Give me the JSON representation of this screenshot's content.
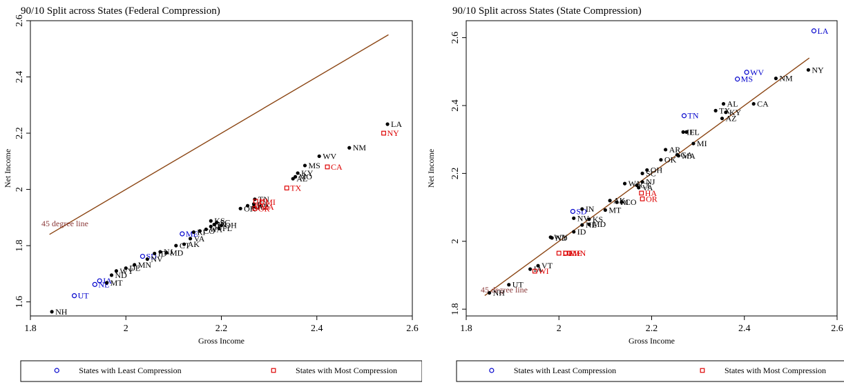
{
  "colors": {
    "least": "#0000cc",
    "most": "#dd0000",
    "normal": "#000000",
    "line45": "#8b4513",
    "line45_label": "#8b3a3a"
  },
  "legend": {
    "least_label": "States with Least Compression",
    "most_label": "States with Most Compression"
  },
  "chart_data": [
    {
      "type": "scatter",
      "title": "90/10 Split across States (Federal Compression)",
      "xlabel": "Gross Income",
      "ylabel": "Net Income",
      "xlim": [
        1.8,
        2.6
      ],
      "ylim": [
        1.55,
        2.6
      ],
      "xticks": [
        "1.8",
        "2",
        "2.2",
        "2.4",
        "2.6"
      ],
      "xtick_values": [
        1.8,
        2.0,
        2.2,
        2.4,
        2.6
      ],
      "yticks": [
        "1.6",
        "1.8",
        "2",
        "2.2",
        "2.4",
        "2.6"
      ],
      "ytick_values": [
        1.6,
        1.8,
        2.0,
        2.2,
        2.4,
        2.6
      ],
      "reference_line": {
        "label": "45 degree line",
        "from": [
          1.84,
          1.84
        ],
        "to": [
          2.55,
          2.55
        ]
      },
      "points": [
        {
          "label": "NH",
          "x": 1.845,
          "y": 1.565,
          "group": "normal"
        },
        {
          "label": "UT",
          "x": 1.892,
          "y": 1.622,
          "group": "least"
        },
        {
          "label": "NE",
          "x": 1.935,
          "y": 1.662,
          "group": "least"
        },
        {
          "label": "IA",
          "x": 1.945,
          "y": 1.675,
          "group": "least"
        },
        {
          "label": "MT",
          "x": 1.96,
          "y": 1.668,
          "group": "normal"
        },
        {
          "label": "ND",
          "x": 1.97,
          "y": 1.695,
          "group": "normal"
        },
        {
          "label": "WY",
          "x": 1.98,
          "y": 1.71,
          "group": "normal"
        },
        {
          "label": "DE",
          "x": 2.0,
          "y": 1.72,
          "group": "normal"
        },
        {
          "label": "MN",
          "x": 2.018,
          "y": 1.732,
          "group": "normal"
        },
        {
          "label": "SD",
          "x": 2.035,
          "y": 1.762,
          "group": "least"
        },
        {
          "label": "NV",
          "x": 2.045,
          "y": 1.752,
          "group": "normal"
        },
        {
          "label": "ID",
          "x": 2.06,
          "y": 1.772,
          "group": "normal"
        },
        {
          "label": "NJ",
          "x": 2.072,
          "y": 1.778,
          "group": "normal"
        },
        {
          "label": "MD",
          "x": 2.085,
          "y": 1.775,
          "group": "normal"
        },
        {
          "label": "CT",
          "x": 2.105,
          "y": 1.8,
          "group": "normal"
        },
        {
          "label": "AK",
          "x": 2.122,
          "y": 1.805,
          "group": "normal"
        },
        {
          "label": "VA",
          "x": 2.135,
          "y": 1.825,
          "group": "normal"
        },
        {
          "label": "ME",
          "x": 2.118,
          "y": 1.842,
          "group": "least"
        },
        {
          "label": "RI",
          "x": 2.142,
          "y": 1.848,
          "group": "normal"
        },
        {
          "label": "CO",
          "x": 2.155,
          "y": 1.852,
          "group": "normal"
        },
        {
          "label": "WA",
          "x": 2.168,
          "y": 1.858,
          "group": "normal"
        },
        {
          "label": "IL",
          "x": 2.178,
          "y": 1.868,
          "group": "normal"
        },
        {
          "label": "KS",
          "x": 2.178,
          "y": 1.888,
          "group": "normal"
        },
        {
          "label": "IN",
          "x": 2.185,
          "y": 1.875,
          "group": "normal"
        },
        {
          "label": "SC",
          "x": 2.19,
          "y": 1.882,
          "group": "normal"
        },
        {
          "label": "OH",
          "x": 2.2,
          "y": 1.872,
          "group": "normal"
        },
        {
          "label": "FL",
          "x": 2.195,
          "y": 1.862,
          "group": "normal"
        },
        {
          "label": "OK",
          "x": 2.24,
          "y": 1.932,
          "group": "normal"
        },
        {
          "label": "AR",
          "x": 2.255,
          "y": 1.942,
          "group": "normal"
        },
        {
          "label": "GA",
          "x": 2.268,
          "y": 1.948,
          "group": "normal"
        },
        {
          "label": "TN",
          "x": 2.27,
          "y": 1.965,
          "group": "normal"
        },
        {
          "label": "AZ",
          "x": 2.268,
          "y": 1.938,
          "group": "normal"
        },
        {
          "label": "HI",
          "x": 2.272,
          "y": 1.958,
          "group": "most"
        },
        {
          "label": "MI",
          "x": 2.285,
          "y": 1.955,
          "group": "most"
        },
        {
          "label": "MA",
          "x": 2.275,
          "y": 1.938,
          "group": "most"
        },
        {
          "label": "OR",
          "x": 2.27,
          "y": 1.932,
          "group": "most"
        },
        {
          "label": "TX",
          "x": 2.337,
          "y": 2.005,
          "group": "most"
        },
        {
          "label": "AL",
          "x": 2.35,
          "y": 2.038,
          "group": "normal"
        },
        {
          "label": "MO",
          "x": 2.355,
          "y": 2.045,
          "group": "normal"
        },
        {
          "label": "KY",
          "x": 2.36,
          "y": 2.058,
          "group": "normal"
        },
        {
          "label": "MS",
          "x": 2.375,
          "y": 2.085,
          "group": "normal"
        },
        {
          "label": "WV",
          "x": 2.405,
          "y": 2.118,
          "group": "normal"
        },
        {
          "label": "CA",
          "x": 2.422,
          "y": 2.08,
          "group": "most"
        },
        {
          "label": "NM",
          "x": 2.468,
          "y": 2.148,
          "group": "normal"
        },
        {
          "label": "NY",
          "x": 2.54,
          "y": 2.2,
          "group": "most"
        },
        {
          "label": "LA",
          "x": 2.548,
          "y": 2.232,
          "group": "normal"
        }
      ]
    },
    {
      "type": "scatter",
      "title": "90/10 Split across States (State Compression)",
      "xlabel": "Gross Income",
      "ylabel": "Net Income",
      "xlim": [
        1.8,
        2.6
      ],
      "ylim": [
        1.78,
        2.65
      ],
      "xticks": [
        "1.8",
        "2",
        "2.2",
        "2.4",
        "2.6"
      ],
      "xtick_values": [
        1.8,
        2.0,
        2.2,
        2.4,
        2.6
      ],
      "yticks": [
        "1.8",
        "2",
        "2.2",
        "2.4",
        "2.6"
      ],
      "ytick_values": [
        1.8,
        2.0,
        2.2,
        2.4,
        2.6
      ],
      "reference_line": {
        "label": "45 degree line",
        "from": [
          1.84,
          1.84
        ],
        "to": [
          2.54,
          2.54
        ]
      },
      "points": [
        {
          "label": "NH",
          "x": 1.85,
          "y": 1.848,
          "group": "normal"
        },
        {
          "label": "UT",
          "x": 1.892,
          "y": 1.872,
          "group": "normal"
        },
        {
          "label": "VT",
          "x": 1.955,
          "y": 1.928,
          "group": "normal"
        },
        {
          "label": "IA",
          "x": 1.938,
          "y": 1.918,
          "group": "normal"
        },
        {
          "label": "WI",
          "x": 1.948,
          "y": 1.912,
          "group": "most"
        },
        {
          "label": "DE",
          "x": 2.0,
          "y": 1.965,
          "group": "most"
        },
        {
          "label": "ME",
          "x": 2.015,
          "y": 1.965,
          "group": "most"
        },
        {
          "label": "MN",
          "x": 2.022,
          "y": 1.965,
          "group": "most"
        },
        {
          "label": "WY",
          "x": 1.982,
          "y": 2.012,
          "group": "normal"
        },
        {
          "label": "ND",
          "x": 1.985,
          "y": 2.01,
          "group": "normal"
        },
        {
          "label": "ID",
          "x": 2.032,
          "y": 2.028,
          "group": "normal"
        },
        {
          "label": "NE",
          "x": 2.05,
          "y": 2.048,
          "group": "normal"
        },
        {
          "label": "MD",
          "x": 2.065,
          "y": 2.05,
          "group": "normal"
        },
        {
          "label": "KS",
          "x": 2.065,
          "y": 2.065,
          "group": "normal"
        },
        {
          "label": "NV",
          "x": 2.032,
          "y": 2.068,
          "group": "normal"
        },
        {
          "label": "SD",
          "x": 2.03,
          "y": 2.088,
          "group": "least"
        },
        {
          "label": "IN",
          "x": 2.05,
          "y": 2.095,
          "group": "normal"
        },
        {
          "label": "MT",
          "x": 2.1,
          "y": 2.092,
          "group": "normal"
        },
        {
          "label": "AK",
          "x": 2.11,
          "y": 2.12,
          "group": "normal"
        },
        {
          "label": "CO",
          "x": 2.135,
          "y": 2.115,
          "group": "normal"
        },
        {
          "label": "RI",
          "x": 2.125,
          "y": 2.115,
          "group": "normal"
        },
        {
          "label": "OR",
          "x": 2.18,
          "y": 2.125,
          "group": "most"
        },
        {
          "label": "HA",
          "x": 2.178,
          "y": 2.142,
          "group": "most"
        },
        {
          "label": "WA",
          "x": 2.142,
          "y": 2.17,
          "group": "normal"
        },
        {
          "label": "VA",
          "x": 2.172,
          "y": 2.158,
          "group": "normal"
        },
        {
          "label": "CT",
          "x": 2.168,
          "y": 2.165,
          "group": "normal"
        },
        {
          "label": "NJ",
          "x": 2.18,
          "y": 2.175,
          "group": "normal"
        },
        {
          "label": "SC",
          "x": 2.18,
          "y": 2.2,
          "group": "normal"
        },
        {
          "label": "OH",
          "x": 2.19,
          "y": 2.21,
          "group": "normal"
        },
        {
          "label": "OK",
          "x": 2.22,
          "y": 2.24,
          "group": "normal"
        },
        {
          "label": "GA",
          "x": 2.255,
          "y": 2.255,
          "group": "normal"
        },
        {
          "label": "MA",
          "x": 2.258,
          "y": 2.252,
          "group": "normal"
        },
        {
          "label": "AR",
          "x": 2.23,
          "y": 2.27,
          "group": "normal"
        },
        {
          "label": "MI",
          "x": 2.29,
          "y": 2.288,
          "group": "normal"
        },
        {
          "label": "FL",
          "x": 2.275,
          "y": 2.322,
          "group": "normal"
        },
        {
          "label": "IL",
          "x": 2.268,
          "y": 2.322,
          "group": "normal"
        },
        {
          "label": "TN",
          "x": 2.27,
          "y": 2.37,
          "group": "least"
        },
        {
          "label": "TX",
          "x": 2.338,
          "y": 2.385,
          "group": "normal"
        },
        {
          "label": "AL",
          "x": 2.355,
          "y": 2.405,
          "group": "normal"
        },
        {
          "label": "AZ",
          "x": 2.352,
          "y": 2.362,
          "group": "normal"
        },
        {
          "label": "KY",
          "x": 2.36,
          "y": 2.38,
          "group": "normal"
        },
        {
          "label": "CA",
          "x": 2.42,
          "y": 2.405,
          "group": "normal"
        },
        {
          "label": "MS",
          "x": 2.385,
          "y": 2.478,
          "group": "least"
        },
        {
          "label": "WV",
          "x": 2.405,
          "y": 2.498,
          "group": "least"
        },
        {
          "label": "NM",
          "x": 2.468,
          "y": 2.48,
          "group": "normal"
        },
        {
          "label": "NY",
          "x": 2.538,
          "y": 2.505,
          "group": "normal"
        },
        {
          "label": "LA",
          "x": 2.55,
          "y": 2.62,
          "group": "least"
        }
      ]
    }
  ]
}
